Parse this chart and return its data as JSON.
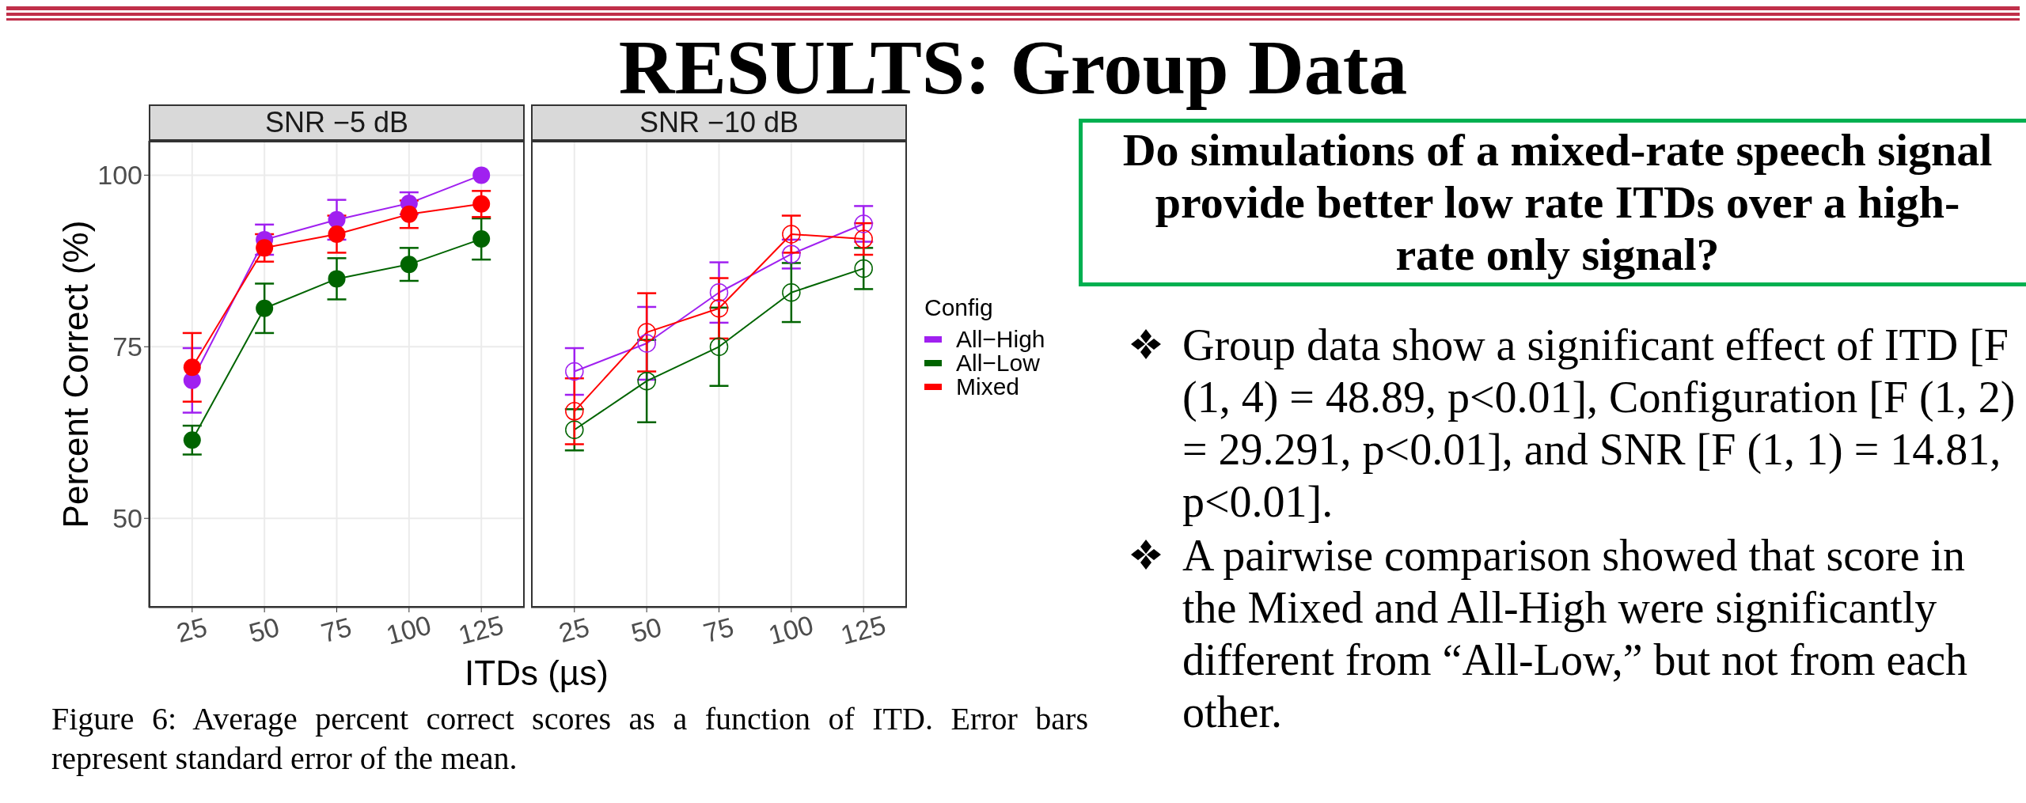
{
  "chart_data": [
    {
      "type": "line",
      "title": "SNR −5 dB",
      "xlabel": "ITDs (µs)",
      "ylabel": "Percent Correct (%)",
      "x": [
        25,
        50,
        75,
        100,
        125
      ],
      "xlim": [
        10,
        140
      ],
      "xticks": [
        25,
        50,
        75,
        100,
        125
      ],
      "ylim": [
        37,
        105
      ],
      "yticks": [
        50,
        75,
        100
      ],
      "grid": true,
      "legend": false,
      "marker": "circle",
      "line_style": "solid",
      "tick_labels": "xy",
      "series": [
        {
          "color": "#a020f0",
          "values": [
            70.1,
            90.6,
            93.5,
            95.9,
            100
          ],
          "errors": [
            4.7,
            2.2,
            2.9,
            1.6,
            null
          ]
        },
        {
          "color": "#006400",
          "values": [
            61.4,
            80.6,
            84.9,
            87.0,
            90.7
          ],
          "errors": [
            2.1,
            3.6,
            3.0,
            2.4,
            3.0
          ]
        },
        {
          "color": "#ff0000",
          "values": [
            72.0,
            89.4,
            91.4,
            94.3,
            95.8
          ],
          "errors": [
            5.0,
            2.0,
            2.7,
            2.0,
            1.9
          ]
        }
      ],
      "annotations": [
        "RESULTS: Group Data",
        "Do simulations of a mixed-rate speech signal provide better low rate ITDs over a high-rate only signal?",
        "Group data show a significant effect of ITD [F (1, 4) = 48.89, p<0.01], Configuration [F (1, 2) = 29.291, p<0.01], and  SNR [F (1, 1) = 14.81, p<0.01].",
        "A pairwise comparison showed that score in the Mixed and All-High were significantly different from “All-Low,” but not from each other.",
        "Figure 6: Average percent correct scores as a function of ITD. Error bars represent standard error of the mean."
      ]
    },
    {
      "type": "line",
      "title": "SNR −10 dB",
      "x": [
        25,
        50,
        75,
        100,
        125
      ],
      "xlim": [
        10,
        140
      ],
      "xticks": [
        25,
        50,
        75,
        100,
        125
      ],
      "ylim": [
        37,
        105
      ],
      "yticks": [
        50,
        75,
        100
      ],
      "grid": true,
      "legend": "right",
      "legend_title": "Config",
      "marker": "circle",
      "line_style": "solid",
      "tick_labels": "x",
      "series": [
        {
          "name": "All−High",
          "color": "#a020f0",
          "values": [
            71.4,
            75.5,
            82.9,
            88.5,
            92.9
          ],
          "errors": [
            3.4,
            5.3,
            4.4,
            2.1,
            2.6
          ]
        },
        {
          "name": "All−Low",
          "color": "#006400",
          "values": [
            62.9,
            70.0,
            75.0,
            82.9,
            86.4
          ],
          "errors": [
            3.0,
            6.0,
            5.7,
            4.3,
            3.0
          ]
        },
        {
          "name": "Mixed",
          "color": "#ff0000",
          "values": [
            65.6,
            77.1,
            80.6,
            91.4,
            90.7
          ],
          "errors": [
            4.8,
            5.7,
            4.4,
            2.7,
            2.3
          ]
        }
      ]
    }
  ]
}
